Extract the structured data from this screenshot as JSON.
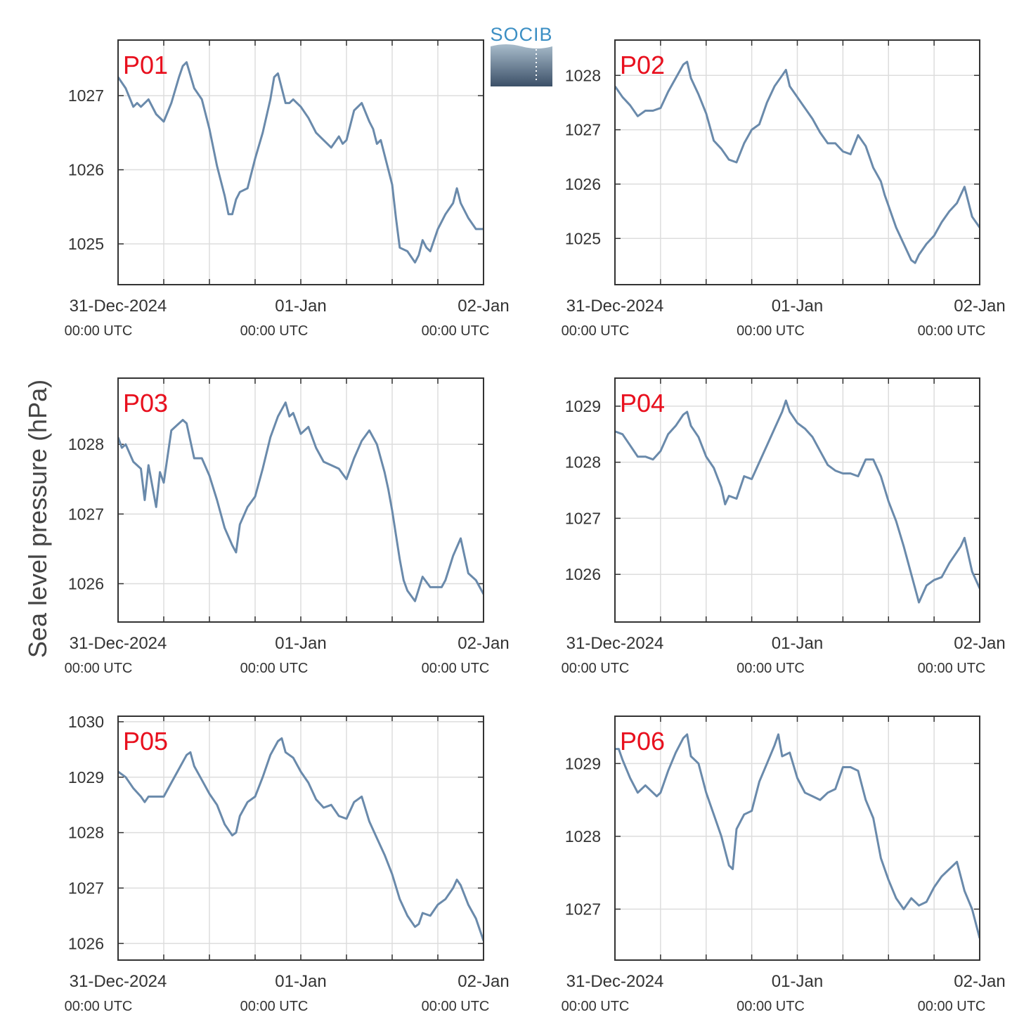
{
  "figure": {
    "ylabel": "Sea level pressure (hPa)",
    "logo_text": "SOCIB",
    "line_color": "#6a8aab",
    "panel_label_color": "#e8101e",
    "grid_color": "#dddddd"
  },
  "chart_data": [
    {
      "type": "line",
      "title": "P01",
      "xticks": [
        "31-Dec-2024",
        "01-Jan",
        "02-Jan"
      ],
      "xtick_sublabels": [
        "00:00 UTC",
        "00:00 UTC",
        "00:00 UTC"
      ],
      "xlim_hours": [
        0,
        48
      ],
      "ylim": [
        1024.45,
        1027.75
      ],
      "yticks": [
        1025,
        1026,
        1027
      ],
      "grid": true,
      "series": [
        {
          "x": [
            0,
            1,
            2,
            2.5,
            3,
            4,
            5,
            6,
            7,
            8,
            8.5,
            9,
            10,
            11,
            12,
            13,
            14,
            14.5,
            15,
            15.5,
            16,
            17,
            18,
            19,
            20,
            20.5,
            21,
            22,
            22.5,
            23,
            24,
            25,
            26,
            27,
            28,
            29,
            29.5,
            30,
            31,
            32,
            33,
            33.5,
            34,
            34.5,
            35,
            36,
            36.5,
            37,
            38,
            39,
            39.5,
            40,
            40.5,
            41,
            42,
            43,
            44,
            44.5,
            45,
            46,
            47,
            48
          ],
          "y": [
            1027.25,
            1027.1,
            1026.85,
            1026.9,
            1026.85,
            1026.95,
            1026.75,
            1026.65,
            1026.9,
            1027.25,
            1027.4,
            1027.45,
            1027.1,
            1026.95,
            1026.55,
            1026.05,
            1025.65,
            1025.4,
            1025.4,
            1025.6,
            1025.7,
            1025.75,
            1026.15,
            1026.5,
            1026.95,
            1027.25,
            1027.3,
            1026.9,
            1026.9,
            1026.95,
            1026.85,
            1026.7,
            1026.5,
            1026.4,
            1026.3,
            1026.45,
            1026.35,
            1026.4,
            1026.8,
            1026.9,
            1026.65,
            1026.55,
            1026.35,
            1026.4,
            1026.2,
            1025.8,
            1025.35,
            1024.95,
            1024.9,
            1024.75,
            1024.85,
            1025.05,
            1024.95,
            1024.9,
            1025.2,
            1025.4,
            1025.55,
            1025.75,
            1025.55,
            1025.35,
            1025.2,
            1025.2
          ]
        }
      ]
    },
    {
      "type": "line",
      "title": "P02",
      "xticks": [
        "31-Dec-2024",
        "01-Jan",
        "02-Jan"
      ],
      "xtick_sublabels": [
        "00:00 UTC",
        "00:00 UTC",
        "00:00 UTC"
      ],
      "xlim_hours": [
        0,
        48
      ],
      "ylim": [
        1024.15,
        1028.65
      ],
      "yticks": [
        1025,
        1026,
        1027,
        1028
      ],
      "grid": true,
      "series": [
        {
          "x": [
            0,
            1,
            2,
            3,
            4,
            5,
            6,
            7,
            8,
            9,
            9.5,
            10,
            11,
            12,
            13,
            14,
            15,
            16,
            17,
            18,
            19,
            20,
            21,
            22,
            22.5,
            23,
            24,
            25,
            26,
            27,
            28,
            29,
            30,
            31,
            32,
            33,
            34,
            35,
            35.5,
            36,
            37,
            38,
            39,
            39.5,
            40,
            41,
            42,
            43,
            44,
            45,
            46,
            47,
            48
          ],
          "y": [
            1027.8,
            1027.6,
            1027.45,
            1027.25,
            1027.35,
            1027.35,
            1027.4,
            1027.7,
            1027.95,
            1028.2,
            1028.25,
            1027.95,
            1027.65,
            1027.3,
            1026.8,
            1026.65,
            1026.45,
            1026.4,
            1026.75,
            1027.0,
            1027.1,
            1027.5,
            1027.8,
            1028.0,
            1028.1,
            1027.8,
            1027.6,
            1027.4,
            1027.2,
            1026.95,
            1026.75,
            1026.75,
            1026.6,
            1026.55,
            1026.9,
            1026.7,
            1026.3,
            1026.05,
            1025.8,
            1025.6,
            1025.2,
            1024.9,
            1024.6,
            1024.55,
            1024.7,
            1024.9,
            1025.05,
            1025.3,
            1025.5,
            1025.65,
            1025.95,
            1025.4,
            1025.2
          ]
        }
      ]
    },
    {
      "type": "line",
      "title": "P03",
      "xticks": [
        "31-Dec-2024",
        "01-Jan",
        "02-Jan"
      ],
      "xtick_sublabels": [
        "00:00 UTC",
        "00:00 UTC",
        "00:00 UTC"
      ],
      "xlim_hours": [
        0,
        48
      ],
      "ylim": [
        1025.45,
        1028.95
      ],
      "yticks": [
        1026,
        1027,
        1028
      ],
      "grid": true,
      "series": [
        {
          "x": [
            0,
            0.5,
            1,
            2,
            3,
            3.5,
            4,
            5,
            5.5,
            6,
            7,
            8,
            8.5,
            9,
            10,
            11,
            12,
            13,
            14,
            15,
            15.5,
            16,
            17,
            18,
            19,
            20,
            21,
            22,
            22.5,
            23,
            24,
            25,
            26,
            27,
            28,
            29,
            30,
            31,
            32,
            33,
            34,
            35,
            35.5,
            36,
            37,
            37.5,
            38,
            39,
            40,
            41,
            42,
            42.5,
            43,
            44,
            45,
            46,
            47,
            48
          ],
          "y": [
            1028.1,
            1027.95,
            1028.0,
            1027.75,
            1027.65,
            1027.2,
            1027.7,
            1027.1,
            1027.6,
            1027.45,
            1028.2,
            1028.3,
            1028.35,
            1028.3,
            1027.8,
            1027.8,
            1027.55,
            1027.2,
            1026.8,
            1026.55,
            1026.45,
            1026.85,
            1027.1,
            1027.25,
            1027.65,
            1028.1,
            1028.4,
            1028.6,
            1028.4,
            1028.45,
            1028.15,
            1028.25,
            1027.95,
            1027.75,
            1027.7,
            1027.65,
            1027.5,
            1027.8,
            1028.05,
            1028.2,
            1028.0,
            1027.6,
            1027.35,
            1027.05,
            1026.35,
            1026.05,
            1025.9,
            1025.75,
            1026.1,
            1025.95,
            1025.95,
            1025.95,
            1026.05,
            1026.4,
            1026.65,
            1026.15,
            1026.05,
            1025.85
          ]
        }
      ]
    },
    {
      "type": "line",
      "title": "P04",
      "xticks": [
        "31-Dec-2024",
        "01-Jan",
        "02-Jan"
      ],
      "xtick_sublabels": [
        "00:00 UTC",
        "00:00 UTC",
        "00:00 UTC"
      ],
      "xlim_hours": [
        0,
        48
      ],
      "ylim": [
        1025.15,
        1029.5
      ],
      "yticks": [
        1026,
        1027,
        1028,
        1029
      ],
      "grid": true,
      "series": [
        {
          "x": [
            0,
            1,
            2,
            3,
            4,
            5,
            6,
            7,
            8,
            9,
            9.5,
            10,
            11,
            12,
            13,
            14,
            14.5,
            15,
            16,
            17,
            18,
            19,
            20,
            21,
            22,
            22.5,
            23,
            24,
            25,
            26,
            27,
            28,
            29,
            30,
            31,
            32,
            33,
            34,
            35,
            36,
            37,
            38,
            39,
            39.5,
            40,
            41,
            42,
            43,
            44,
            45,
            45.5,
            46,
            47,
            48
          ],
          "y": [
            1028.55,
            1028.5,
            1028.3,
            1028.1,
            1028.1,
            1028.05,
            1028.2,
            1028.5,
            1028.65,
            1028.85,
            1028.9,
            1028.65,
            1028.45,
            1028.1,
            1027.9,
            1027.55,
            1027.25,
            1027.4,
            1027.35,
            1027.75,
            1027.7,
            1028.0,
            1028.3,
            1028.6,
            1028.9,
            1029.1,
            1028.9,
            1028.7,
            1028.6,
            1028.45,
            1028.2,
            1027.95,
            1027.85,
            1027.8,
            1027.8,
            1027.75,
            1028.05,
            1028.05,
            1027.75,
            1027.3,
            1026.95,
            1026.5,
            1026.0,
            1025.75,
            1025.5,
            1025.8,
            1025.9,
            1025.95,
            1026.2,
            1026.4,
            1026.5,
            1026.65,
            1026.05,
            1025.75
          ]
        }
      ]
    },
    {
      "type": "line",
      "title": "P05",
      "xticks": [
        "31-Dec-2024",
        "01-Jan",
        "02-Jan"
      ],
      "xtick_sublabels": [
        "00:00 UTC",
        "00:00 UTC",
        "00:00 UTC"
      ],
      "xlim_hours": [
        0,
        48
      ],
      "ylim": [
        1025.7,
        1030.1
      ],
      "yticks": [
        1026,
        1027,
        1028,
        1029,
        1030
      ],
      "grid": true,
      "series": [
        {
          "x": [
            0,
            1,
            2,
            3,
            3.5,
            4,
            5,
            6,
            7,
            8,
            9,
            9.5,
            10,
            11,
            12,
            13,
            14,
            15,
            15.5,
            16,
            17,
            18,
            19,
            20,
            21,
            21.5,
            22,
            23,
            24,
            25,
            26,
            27,
            28,
            29,
            30,
            31,
            32,
            33,
            34,
            35,
            36,
            37,
            38,
            39,
            39.5,
            40,
            41,
            42,
            43,
            44,
            44.5,
            45,
            46,
            47,
            48
          ],
          "y": [
            1029.1,
            1029.0,
            1028.8,
            1028.65,
            1028.55,
            1028.65,
            1028.65,
            1028.65,
            1028.9,
            1029.15,
            1029.4,
            1029.45,
            1029.2,
            1028.95,
            1028.7,
            1028.5,
            1028.15,
            1027.95,
            1028.0,
            1028.3,
            1028.55,
            1028.65,
            1029.0,
            1029.4,
            1029.65,
            1029.7,
            1029.45,
            1029.35,
            1029.1,
            1028.9,
            1028.6,
            1028.45,
            1028.5,
            1028.3,
            1028.25,
            1028.55,
            1028.65,
            1028.2,
            1027.9,
            1027.6,
            1027.25,
            1026.8,
            1026.5,
            1026.3,
            1026.35,
            1026.55,
            1026.5,
            1026.7,
            1026.8,
            1027.0,
            1027.15,
            1027.05,
            1026.7,
            1026.45,
            1026.05
          ]
        }
      ]
    },
    {
      "type": "line",
      "title": "P06",
      "xticks": [
        "31-Dec-2024",
        "01-Jan",
        "02-Jan"
      ],
      "xtick_sublabels": [
        "00:00 UTC",
        "00:00 UTC",
        "00:00 UTC"
      ],
      "xlim_hours": [
        0,
        48
      ],
      "ylim": [
        1026.3,
        1029.65
      ],
      "yticks": [
        1027,
        1028,
        1029
      ],
      "grid": true,
      "series": [
        {
          "x": [
            0,
            0.5,
            1,
            2,
            3,
            4,
            5,
            5.5,
            6,
            7,
            8,
            9,
            9.5,
            10,
            11,
            12,
            13,
            14,
            15,
            15.5,
            16,
            17,
            18,
            19,
            20,
            21,
            21.5,
            22,
            23,
            24,
            25,
            26,
            27,
            28,
            29,
            30,
            31,
            32,
            33,
            34,
            35,
            36,
            37,
            38,
            39,
            40,
            41,
            42,
            43,
            44,
            45,
            45.5,
            46,
            47,
            47.5,
            48
          ],
          "y": [
            1029.2,
            1029.2,
            1029.05,
            1028.8,
            1028.6,
            1028.7,
            1028.6,
            1028.55,
            1028.6,
            1028.9,
            1029.15,
            1029.35,
            1029.4,
            1029.1,
            1029.0,
            1028.6,
            1028.3,
            1028.0,
            1027.6,
            1027.55,
            1028.1,
            1028.3,
            1028.35,
            1028.75,
            1029.0,
            1029.25,
            1029.4,
            1029.1,
            1029.15,
            1028.8,
            1028.6,
            1028.55,
            1028.5,
            1028.6,
            1028.65,
            1028.95,
            1028.95,
            1028.9,
            1028.5,
            1028.25,
            1027.7,
            1027.4,
            1027.15,
            1027.0,
            1027.15,
            1027.05,
            1027.1,
            1027.3,
            1027.45,
            1027.55,
            1027.65,
            1027.45,
            1027.25,
            1027.0,
            1026.8,
            1026.6
          ]
        }
      ]
    }
  ]
}
